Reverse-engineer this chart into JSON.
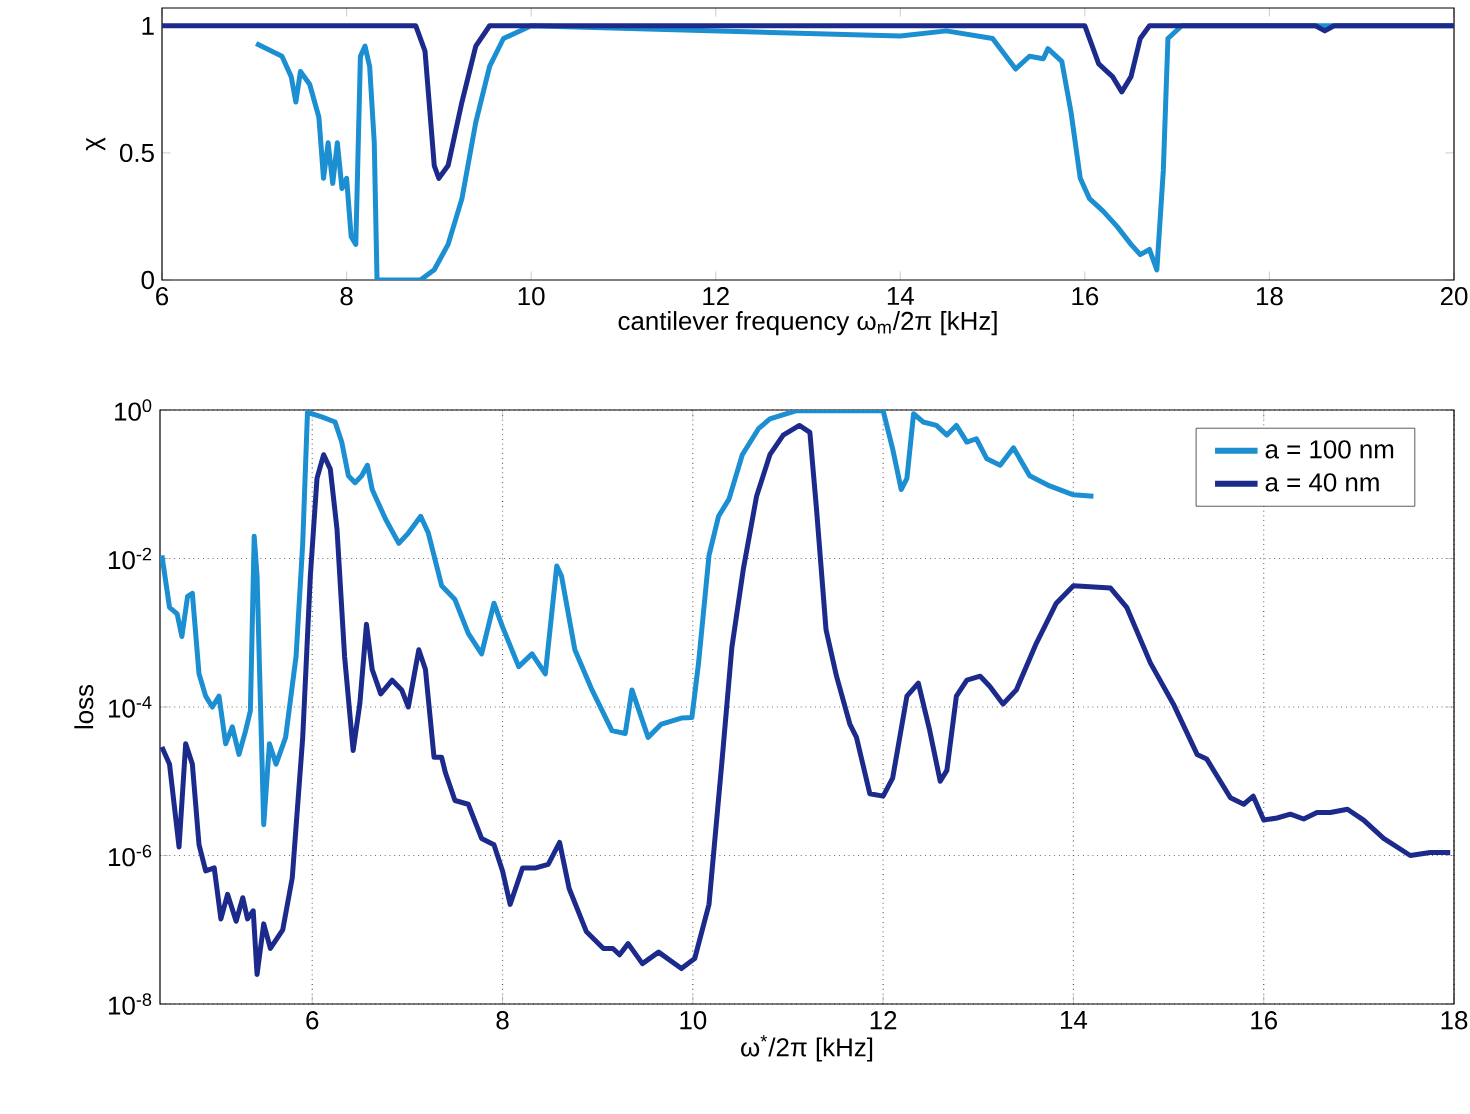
{
  "chart_data": [
    {
      "type": "line",
      "xlabel": "cantilever frequency ω$_{m}$/2π [kHz]",
      "ylabel": "χ",
      "xlim": [
        6,
        20
      ],
      "ylim": [
        0,
        1.07
      ],
      "xticks": [
        6,
        8,
        10,
        12,
        14,
        16,
        18,
        20
      ],
      "yticks": [
        0,
        0.5,
        1
      ],
      "legend": false,
      "series": [
        {
          "color": "#1b8fd1",
          "x": [
            7.02,
            7.3,
            7.4,
            7.45,
            7.5,
            7.6,
            7.7,
            7.75,
            7.8,
            7.85,
            7.9,
            7.95,
            8.0,
            8.05,
            8.1,
            8.15,
            8.2,
            8.25,
            8.3,
            8.33,
            8.8,
            8.95,
            9.1,
            9.25,
            9.4,
            9.55,
            9.7,
            10.0,
            14.0,
            14.5,
            15.0,
            15.25,
            15.4,
            15.55,
            15.6,
            15.75,
            15.85,
            15.95,
            16.05,
            16.2,
            16.35,
            16.5,
            16.6,
            16.7,
            16.78,
            16.85,
            16.9,
            17.05,
            20
          ],
          "values": [
            0.93,
            0.88,
            0.8,
            0.7,
            0.82,
            0.77,
            0.64,
            0.4,
            0.54,
            0.38,
            0.54,
            0.36,
            0.4,
            0.17,
            0.14,
            0.88,
            0.92,
            0.84,
            0.54,
            0,
            0,
            0.04,
            0.14,
            0.32,
            0.62,
            0.84,
            0.95,
            1,
            0.96,
            0.98,
            0.95,
            0.83,
            0.88,
            0.87,
            0.91,
            0.86,
            0.66,
            0.4,
            0.32,
            0.27,
            0.21,
            0.14,
            0.1,
            0.12,
            0.04,
            0.43,
            0.95,
            1,
            1
          ]
        },
        {
          "color": "#1c2a8c",
          "x": [
            6,
            8.75,
            8.85,
            8.95,
            9.0,
            9.1,
            9.25,
            9.4,
            9.55,
            16.0,
            16.15,
            16.3,
            16.4,
            16.5,
            16.6,
            16.7,
            18.5,
            18.6,
            18.7,
            20
          ],
          "values": [
            1,
            1,
            0.9,
            0.45,
            0.4,
            0.45,
            0.7,
            0.92,
            1,
            1,
            0.85,
            0.8,
            0.74,
            0.8,
            0.95,
            1,
            1,
            0.98,
            1,
            1
          ]
        }
      ]
    },
    {
      "type": "line",
      "xlabel": "ω$^{*}$/2π [kHz]",
      "ylabel": "loss",
      "log": "y",
      "grid": true,
      "legend": "top right",
      "xlim": [
        4.4,
        18
      ],
      "ylim": [
        1e-08,
        1
      ],
      "xticks": [
        6,
        8,
        10,
        12,
        14,
        16,
        18
      ],
      "yticks": [
        {
          "value": 1e-08,
          "label": "10$^{-8}$"
        },
        {
          "value": 1e-06,
          "label": "10$^{-6}$"
        },
        {
          "value": 0.0001,
          "label": "10$^{-4}$"
        },
        {
          "value": 0.01,
          "label": "10$^{-2}$"
        },
        {
          "value": 1,
          "label": "10$^{0}$"
        }
      ],
      "series": [
        {
          "name": "a = 100 nm",
          "color": "#1b8fd1",
          "x": [
            4.42,
            4.5,
            4.58,
            4.63,
            4.69,
            4.74,
            4.81,
            4.88,
            4.95,
            5.02,
            5.09,
            5.16,
            5.23,
            5.3,
            5.35,
            5.39,
            5.42,
            5.49,
            5.55,
            5.62,
            5.72,
            5.83,
            5.9,
            5.95,
            6.1,
            6.24,
            6.31,
            6.38,
            6.45,
            6.52,
            6.58,
            6.63,
            6.77,
            6.91,
            7.01,
            7.14,
            7.22,
            7.36,
            7.5,
            7.64,
            7.78,
            7.91,
            8.0,
            8.17,
            8.31,
            8.45,
            8.57,
            8.62,
            8.76,
            8.94,
            9.15,
            9.29,
            9.36,
            9.53,
            9.67,
            9.88,
            9.99,
            10.06,
            10.17,
            10.27,
            10.38,
            10.52,
            10.69,
            10.81,
            11.09,
            12.0,
            12.1,
            12.19,
            12.25,
            12.32,
            12.42,
            12.56,
            12.67,
            12.77,
            12.88,
            12.98,
            13.09,
            13.23,
            13.37,
            13.54,
            13.75,
            14.0,
            14.21
          ],
          "values": [
            0.011,
            0.0022,
            0.0018,
            0.00089,
            0.0031,
            0.0034,
            0.00028,
            0.00014,
            0.0001,
            0.00014,
            3.2e-05,
            5.4e-05,
            2.3e-05,
            4.8e-05,
            8.9e-05,
            0.02,
            0.0058,
            2.6e-06,
            3.2e-05,
            1.7e-05,
            3.9e-05,
            0.00048,
            0.016,
            0.93,
            0.81,
            0.69,
            0.37,
            0.13,
            0.105,
            0.13,
            0.18,
            0.085,
            0.034,
            0.016,
            0.022,
            0.037,
            0.022,
            0.0043,
            0.0028,
            0.00098,
            0.00052,
            0.0025,
            0.0012,
            0.00035,
            0.00052,
            0.00028,
            0.0079,
            0.0058,
            0.00059,
            0.00017,
            4.8e-05,
            4.4e-05,
            0.00017,
            3.9e-05,
            5.9e-05,
            7.1e-05,
            7.2e-05,
            0.00039,
            0.011,
            0.037,
            0.063,
            0.25,
            0.56,
            0.76,
            0.98,
            0.98,
            0.3,
            0.085,
            0.12,
            0.89,
            0.69,
            0.62,
            0.46,
            0.62,
            0.37,
            0.41,
            0.22,
            0.18,
            0.31,
            0.13,
            0.095,
            0.072,
            0.069
          ]
        },
        {
          "name": "a = 40 nm",
          "color": "#1c2a8c",
          "x": [
            4.42,
            4.5,
            4.6,
            4.67,
            4.74,
            4.81,
            4.88,
            4.97,
            5.04,
            5.11,
            5.2,
            5.27,
            5.32,
            5.38,
            5.42,
            5.49,
            5.56,
            5.69,
            5.79,
            5.9,
            5.98,
            6.05,
            6.12,
            6.19,
            6.26,
            6.34,
            6.43,
            6.5,
            6.57,
            6.63,
            6.72,
            6.84,
            6.94,
            7.01,
            7.12,
            7.19,
            7.28,
            7.36,
            7.4,
            7.5,
            7.64,
            7.78,
            7.91,
            8.0,
            8.08,
            8.21,
            8.35,
            8.48,
            8.6,
            8.7,
            8.88,
            9.06,
            9.16,
            9.23,
            9.32,
            9.47,
            9.64,
            9.88,
            10.02,
            10.17,
            10.31,
            10.41,
            10.53,
            10.67,
            10.81,
            10.95,
            11.12,
            11.23,
            11.3,
            11.4,
            11.51,
            11.65,
            11.72,
            11.86,
            12.0,
            12.1,
            12.25,
            12.37,
            12.49,
            12.6,
            12.67,
            12.77,
            12.88,
            13.02,
            13.12,
            13.26,
            13.4,
            13.61,
            13.82,
            14.0,
            14.39,
            14.56,
            14.81,
            15.05,
            15.3,
            15.4,
            15.65,
            15.79,
            15.89,
            16.0,
            16.14,
            16.28,
            16.42,
            16.56,
            16.7,
            16.88,
            17.05,
            17.26,
            17.54,
            17.75,
            17.96
          ],
          "values": [
            2.9e-05,
            1.7e-05,
            1.3e-06,
            3.2e-05,
            1.7e-05,
            1.4e-06,
            6.2e-07,
            6.8e-07,
            1.4e-07,
            3e-07,
            1.3e-07,
            2.7e-07,
            1.4e-07,
            1.8e-07,
            2.5e-08,
            1.2e-07,
            5.6e-08,
            1e-07,
            5e-07,
            3.9e-05,
            0.0058,
            0.12,
            0.25,
            0.16,
            0.025,
            0.00048,
            2.6e-05,
            0.00011,
            0.0013,
            0.00032,
            0.00015,
            0.00023,
            0.00017,
            0.0001,
            0.00059,
            0.00032,
            2.1e-05,
            2.1e-05,
            1.3e-05,
            5.5e-06,
            4.9e-06,
            1.7e-06,
            1.4e-06,
            6.2e-07,
            2.2e-07,
            6.8e-07,
            6.8e-07,
            7.6e-07,
            1.5e-06,
            3.6e-07,
            9.5e-08,
            5.6e-08,
            5.6e-08,
            4.6e-08,
            6.5e-08,
            3.5e-08,
            5e-08,
            3e-08,
            4.1e-08,
            2.2e-07,
            2.1e-05,
            0.00063,
            0.0071,
            0.069,
            0.25,
            0.46,
            0.62,
            0.5,
            0.046,
            0.0011,
            0.00026,
            5.9e-05,
            3.9e-05,
            6.8e-06,
            6.3e-06,
            1.1e-05,
            0.00014,
            0.00021,
            4.8e-05,
            1e-05,
            1.4e-05,
            0.00014,
            0.00023,
            0.00026,
            0.00019,
            0.00011,
            0.00017,
            0.00072,
            0.0025,
            0.0043,
            0.004,
            0.0022,
            0.00039,
            0.00011,
            2.3e-05,
            2e-05,
            6e-06,
            4.9e-06,
            6.3e-06,
            3e-06,
            3.2e-06,
            3.6e-06,
            3.1e-06,
            3.8e-06,
            3.8e-06,
            4.2e-06,
            3e-06,
            1.7e-06,
            1e-06,
            1.1e-06,
            1.1e-06
          ]
        }
      ]
    }
  ]
}
